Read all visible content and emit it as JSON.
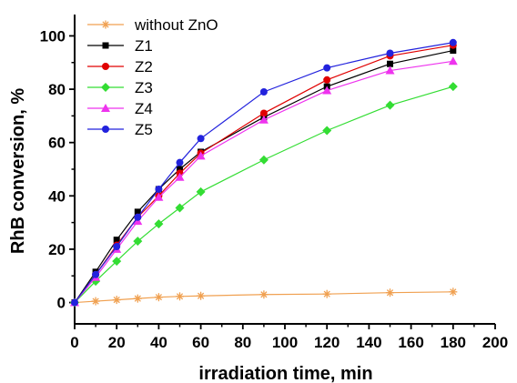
{
  "chart_data": {
    "type": "line",
    "xlabel": "irradiation time, min",
    "ylabel": "RhB conversion, %",
    "xlim": [
      0,
      200
    ],
    "ylim": [
      -8,
      108
    ],
    "xticks": [
      0,
      20,
      40,
      60,
      80,
      100,
      120,
      140,
      160,
      180,
      200
    ],
    "yticks": [
      0,
      20,
      40,
      60,
      80,
      100
    ],
    "grid": false,
    "legend": "top-left",
    "series": [
      {
        "name": "without ZnO",
        "color": "#f0a050",
        "marker": "star",
        "x": [
          0,
          10,
          20,
          30,
          40,
          50,
          60,
          90,
          120,
          150,
          180
        ],
        "values": [
          0,
          0.5,
          1,
          1.5,
          2,
          2.3,
          2.5,
          3,
          3.2,
          3.7,
          4
        ]
      },
      {
        "name": "Z1",
        "color": "#000000",
        "marker": "square",
        "x": [
          0,
          10,
          20,
          30,
          40,
          50,
          60,
          90,
          120,
          150,
          180
        ],
        "values": [
          0,
          11.5,
          23.5,
          34,
          42.5,
          50,
          56.5,
          69.5,
          81,
          89.5,
          94.5
        ]
      },
      {
        "name": "Z2",
        "color": "#e00000",
        "marker": "circle",
        "x": [
          0,
          10,
          20,
          30,
          40,
          50,
          60,
          90,
          120,
          150,
          180
        ],
        "values": [
          0,
          10.5,
          21.5,
          32,
          40,
          48.5,
          56,
          71,
          83.5,
          92.5,
          96.5
        ]
      },
      {
        "name": "Z3",
        "color": "#33dd33",
        "marker": "diamond",
        "x": [
          0,
          10,
          20,
          30,
          40,
          50,
          60,
          90,
          120,
          150,
          180
        ],
        "values": [
          0,
          8,
          15.5,
          23,
          29.5,
          35.5,
          41.5,
          53.5,
          64.5,
          74,
          81
        ]
      },
      {
        "name": "Z4",
        "color": "#ee33ee",
        "marker": "triangle",
        "x": [
          0,
          10,
          20,
          30,
          40,
          50,
          60,
          90,
          120,
          150,
          180
        ],
        "values": [
          0,
          9.5,
          20,
          30.5,
          39.5,
          47,
          55,
          68.5,
          79.5,
          87,
          90.5
        ]
      },
      {
        "name": "Z5",
        "color": "#2222dd",
        "marker": "circle",
        "x": [
          0,
          10,
          20,
          30,
          40,
          50,
          60,
          90,
          120,
          150,
          180
        ],
        "values": [
          0,
          10.5,
          21,
          32,
          42.5,
          52.5,
          61.5,
          79,
          88,
          93.5,
          97.5
        ]
      }
    ]
  }
}
